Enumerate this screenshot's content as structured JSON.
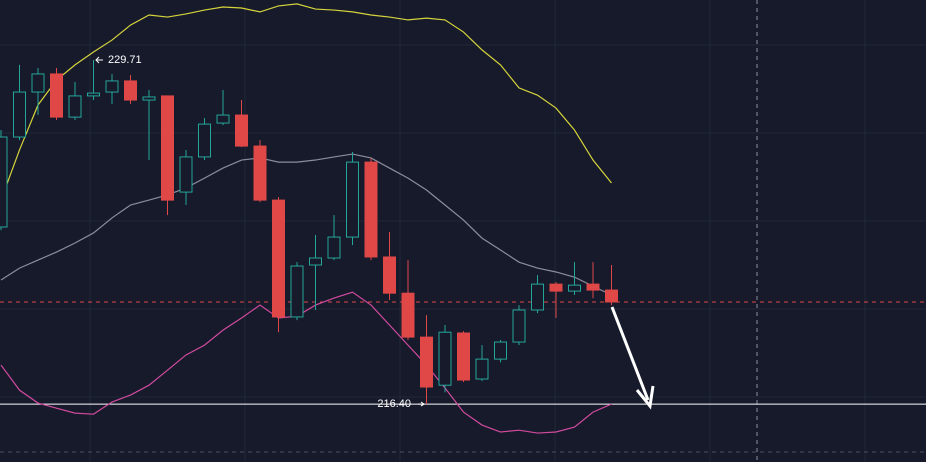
{
  "chart_data": {
    "type": "candlestick",
    "ylim": [
      214.16,
      232.03
    ],
    "up_color": "#26a69a",
    "down_color": "#e04848",
    "candles": {
      "open": [
        223.25,
        226.73,
        228.47,
        229.17,
        227.5,
        228.32,
        228.47,
        228.9,
        228.16,
        228.32,
        224.6,
        225.96,
        227.27,
        227.58,
        226.38,
        224.29,
        219.77,
        221.78,
        222.05,
        222.86,
        225.76,
        222.09,
        220.69,
        218.99,
        217.13,
        219.15,
        217.37,
        218.14,
        218.8,
        220.04,
        221.04,
        220.77,
        221.04,
        220.81
      ],
      "high": [
        227.0,
        229.52,
        229.4,
        229.4,
        228.86,
        229.71,
        229.17,
        229.13,
        228.55,
        228.32,
        226.23,
        227.46,
        228.55,
        228.16,
        226.61,
        224.41,
        221.89,
        222.94,
        223.71,
        226.15,
        225.92,
        223.05,
        221.97,
        219.84,
        219.46,
        219.22,
        218.68,
        218.88,
        220.23,
        221.39,
        221.12,
        221.89,
        221.89,
        221.78
      ],
      "low": [
        223.13,
        226.61,
        227.58,
        227.39,
        227.39,
        228.16,
        228.01,
        228.01,
        225.84,
        223.71,
        224.1,
        225.84,
        227.19,
        226.34,
        224.21,
        219.18,
        219.65,
        220.04,
        221.97,
        222.55,
        221.97,
        220.42,
        218.88,
        216.4,
        216.86,
        217.25,
        217.29,
        218.02,
        218.68,
        219.92,
        219.73,
        220.62,
        220.5,
        220.23
      ],
      "close": [
        226.73,
        228.47,
        229.17,
        227.5,
        228.32,
        228.43,
        228.9,
        228.16,
        228.28,
        224.29,
        225.96,
        227.23,
        227.58,
        226.38,
        224.29,
        219.77,
        221.74,
        222.05,
        222.86,
        225.76,
        222.09,
        220.69,
        218.99,
        217.06,
        219.18,
        217.33,
        218.14,
        218.8,
        220.04,
        221.04,
        220.77,
        221.0,
        220.81,
        220.35
      ]
    },
    "series": [
      {
        "color": "#d6d43c",
        "values": [
          224.29,
          226.23,
          227.97,
          228.93,
          229.52,
          230.02,
          230.48,
          231.06,
          231.45,
          231.37,
          231.49,
          231.64,
          231.76,
          231.72,
          231.57,
          231.8,
          231.88,
          231.68,
          231.64,
          231.57,
          231.45,
          231.37,
          231.26,
          231.33,
          231.26,
          230.79,
          230.1,
          229.52,
          228.63,
          228.35,
          227.85,
          227.0,
          225.84,
          224.95
        ]
      },
      {
        "color": "#8a8e9e",
        "values": [
          221.2,
          221.66,
          221.97,
          222.28,
          222.63,
          223.02,
          223.6,
          224.1,
          224.29,
          224.49,
          224.76,
          225.14,
          225.53,
          225.84,
          225.92,
          225.76,
          225.76,
          225.84,
          225.96,
          226.07,
          225.92,
          225.53,
          225.14,
          224.68,
          224.1,
          223.52,
          222.82,
          222.36,
          221.89,
          221.66,
          221.51,
          221.31,
          220.96,
          220.62
        ]
      },
      {
        "color": "#d24a9e",
        "values": [
          217.91,
          216.94,
          216.44,
          216.24,
          216.05,
          216.01,
          216.48,
          216.75,
          217.13,
          217.71,
          218.3,
          218.68,
          219.26,
          219.73,
          220.23,
          219.73,
          219.8,
          220.23,
          220.5,
          220.73,
          220.23,
          219.46,
          218.68,
          217.91,
          217.02,
          216.09,
          215.59,
          215.32,
          215.39,
          215.28,
          215.32,
          215.51,
          216.09,
          216.4
        ]
      }
    ],
    "annotations": [
      {
        "label": "229.71",
        "value": 229.71
      },
      {
        "label": "216.40",
        "value": 216.4
      }
    ]
  }
}
